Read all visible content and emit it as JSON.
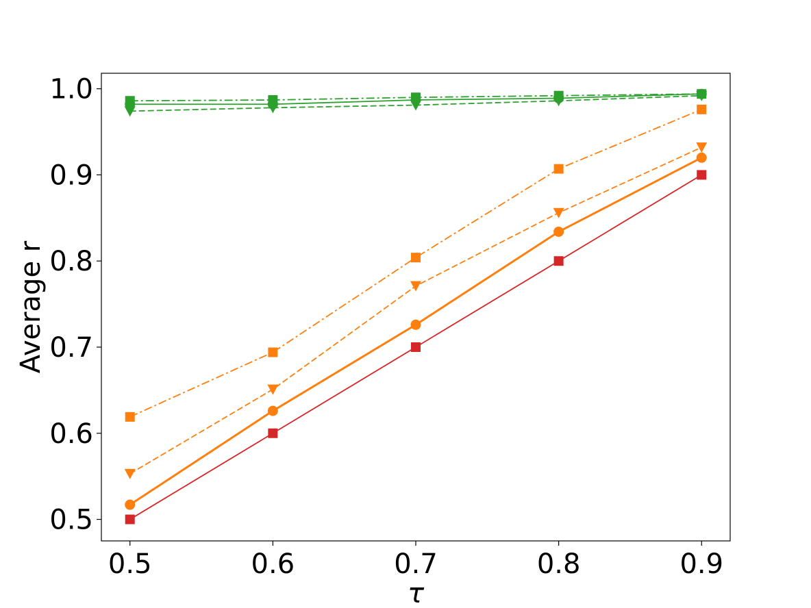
{
  "chart_data": {
    "type": "line",
    "title": "",
    "xlabel": "τ",
    "ylabel": "Average r",
    "x": [
      0.5,
      0.6,
      0.7,
      0.8,
      0.9
    ],
    "x_tick_labels": [
      "0.5",
      "0.6",
      "0.7",
      "0.8",
      "0.9"
    ],
    "xlim": [
      0.48,
      0.92
    ],
    "y_ticks": [
      0.5,
      0.6,
      0.7,
      0.8,
      0.9,
      1.0
    ],
    "y_tick_labels": [
      "0.5",
      "0.6",
      "0.7",
      "0.8",
      "0.9",
      "1.0"
    ],
    "ylim": [
      0.475,
      1.018
    ],
    "grid": false,
    "legend": "none",
    "series": [
      {
        "color": "#d62728",
        "linestyle": "solid",
        "marker": "square",
        "linewidth": "thin",
        "values": [
          0.5,
          0.6,
          0.7,
          0.8,
          0.9
        ]
      },
      {
        "color": "#ff7f0e",
        "linestyle": "solid",
        "marker": "circle",
        "linewidth": "thick",
        "values": [
          0.517,
          0.626,
          0.726,
          0.834,
          0.92
        ]
      },
      {
        "color": "#ff7f0e",
        "linestyle": "dashed",
        "marker": "triangle-down",
        "linewidth": "thin",
        "values": [
          0.553,
          0.651,
          0.771,
          0.856,
          0.932
        ]
      },
      {
        "color": "#ff7f0e",
        "linestyle": "dashdot",
        "marker": "square",
        "linewidth": "thin",
        "values": [
          0.619,
          0.694,
          0.804,
          0.907,
          0.976
        ]
      },
      {
        "color": "#2ca02c",
        "linestyle": "solid",
        "marker": "circle",
        "linewidth": "thin",
        "values": [
          0.982,
          0.982,
          0.987,
          0.989,
          0.994
        ]
      },
      {
        "color": "#2ca02c",
        "linestyle": "dashed",
        "marker": "triangle-down",
        "linewidth": "thin",
        "values": [
          0.974,
          0.978,
          0.981,
          0.986,
          0.992
        ]
      },
      {
        "color": "#2ca02c",
        "linestyle": "dashdot",
        "marker": "square",
        "linewidth": "thin",
        "values": [
          0.986,
          0.987,
          0.99,
          0.992,
          0.994
        ]
      }
    ]
  }
}
